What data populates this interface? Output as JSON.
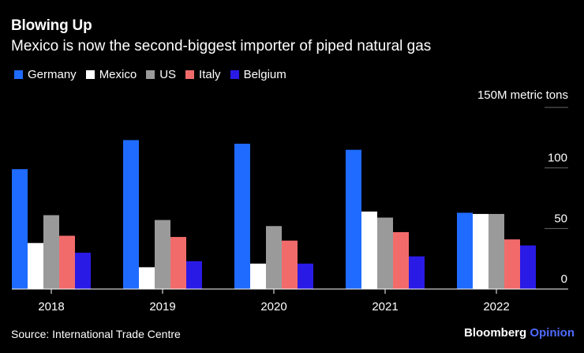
{
  "header": {
    "title": "Blowing Up",
    "subtitle": "Mexico is now the second-biggest importer of piped natural gas"
  },
  "footer": {
    "source": "Source: International Trade Centre",
    "brand": "Bloomberg",
    "brand_suffix": "Opinion"
  },
  "chart_data": {
    "type": "bar",
    "title": "Blowing Up",
    "subtitle": "Mexico is now the second-biggest importer of piped natural gas",
    "xlabel": "",
    "ylabel": "",
    "unit_label": "150M metric tons",
    "categories": [
      "2018",
      "2019",
      "2020",
      "2021",
      "2022"
    ],
    "ylim": [
      0,
      150
    ],
    "yticks": [
      0,
      50,
      100,
      150
    ],
    "ytick_labels": [
      "0",
      "50",
      "100",
      "150M metric tons"
    ],
    "grid": true,
    "legend_position": "top-left",
    "series": [
      {
        "name": "Germany",
        "color": "#1f6bff",
        "values": [
          99,
          123,
          120,
          115,
          63
        ]
      },
      {
        "name": "Mexico",
        "color": "#ffffff",
        "values": [
          38,
          18,
          21,
          64,
          62
        ]
      },
      {
        "name": "US",
        "color": "#9a9a9a",
        "values": [
          61,
          57,
          52,
          59,
          62
        ]
      },
      {
        "name": "Italy",
        "color": "#f26b6b",
        "values": [
          44,
          43,
          40,
          47,
          41
        ]
      },
      {
        "name": "Belgium",
        "color": "#2a1ae6",
        "values": [
          30,
          23,
          21,
          27,
          36
        ]
      }
    ]
  }
}
